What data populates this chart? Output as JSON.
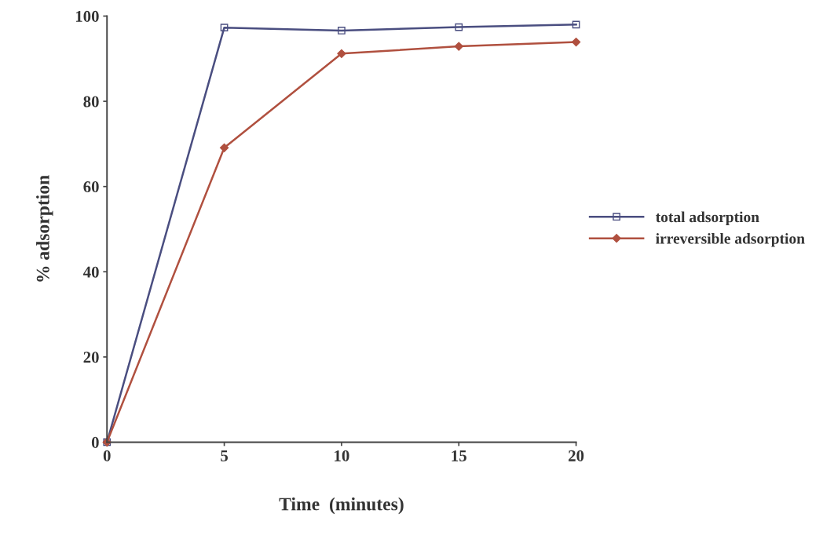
{
  "chart_data": {
    "type": "line",
    "xlabel": "Time  (minutes)",
    "ylabel": "% adsorption",
    "x": [
      0,
      5,
      10,
      15,
      20
    ],
    "series": [
      {
        "name": "total adsorption",
        "color": "#4a4e80",
        "values": [
          0,
          97.3,
          96.6,
          97.4,
          98.0
        ],
        "marker": "square"
      },
      {
        "name": "irreversible adsorption",
        "color": "#b0503f",
        "values": [
          0,
          69.1,
          91.2,
          92.9,
          93.9
        ],
        "marker": "diamond"
      }
    ],
    "xlim": [
      0,
      20
    ],
    "xticks": [
      0,
      5,
      10,
      15,
      20
    ],
    "ylim": [
      0,
      100
    ],
    "yticks": [
      0,
      20,
      40,
      60,
      80,
      100
    ],
    "grid": false,
    "legend": "right",
    "line_style": "solid"
  }
}
